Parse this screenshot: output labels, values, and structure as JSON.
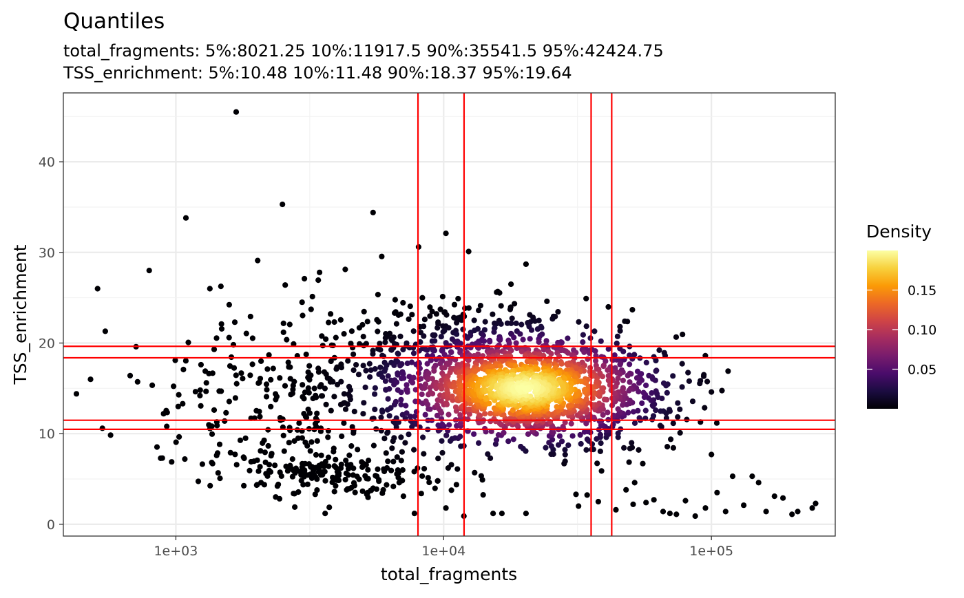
{
  "chart_data": {
    "type": "scatter",
    "title": "Quantiles",
    "subtitle_lines": [
      "total_fragments: 5%:8021.25 10%:11917.5 90%:35541.5 95%:42424.75",
      "TSS_enrichment: 5%:10.48 10%:11.48 90%:18.37 95%:19.64"
    ],
    "xlabel": "total_fragments",
    "ylabel": "TSS_enrichment",
    "x_scale": "log10",
    "xlim": [
      380,
      290000
    ],
    "ylim": [
      -1.3,
      47.6
    ],
    "x_ticks": [
      1000,
      10000,
      100000
    ],
    "x_tick_labels": [
      "1e+03",
      "1e+04",
      "1e+05"
    ],
    "y_ticks": [
      0,
      10,
      20,
      30,
      40
    ],
    "y_tick_labels": [
      "0",
      "10",
      "20",
      "30",
      "40"
    ],
    "grid": true,
    "quantile_lines": {
      "color": "#ff0000",
      "x": [
        8021.25,
        11917.5,
        35541.5,
        42424.75
      ],
      "y": [
        10.48,
        11.48,
        18.37,
        19.64
      ]
    },
    "legend": {
      "title": "Density",
      "placement": "right",
      "ticks": [
        0.05,
        0.1,
        0.15
      ],
      "tick_labels": [
        "0.05",
        "0.10",
        "0.15"
      ],
      "range": [
        0.0,
        0.2
      ],
      "colormap": [
        "#000004",
        "#1b0c41",
        "#4a0c6b",
        "#781c6d",
        "#a52c60",
        "#cf4446",
        "#ed6925",
        "#fb9b06",
        "#f7d13d",
        "#fcffa4"
      ]
    },
    "outlier_points": [
      {
        "x": 480,
        "y": 16.0
      },
      {
        "x": 510,
        "y": 26.0
      },
      {
        "x": 545,
        "y": 21.3
      },
      {
        "x": 675,
        "y": 16.4
      },
      {
        "x": 710,
        "y": 19.6
      },
      {
        "x": 795,
        "y": 28.0
      },
      {
        "x": 890,
        "y": 7.3
      },
      {
        "x": 900,
        "y": 12.2
      },
      {
        "x": 925,
        "y": 10.8
      },
      {
        "x": 1020,
        "y": 13.0
      },
      {
        "x": 1060,
        "y": 13.3
      },
      {
        "x": 1080,
        "y": 7.2
      },
      {
        "x": 1090,
        "y": 33.8
      },
      {
        "x": 1230,
        "y": 14.2
      },
      {
        "x": 1300,
        "y": 15.6
      },
      {
        "x": 1340,
        "y": 26.0
      },
      {
        "x": 1390,
        "y": 19.3
      },
      {
        "x": 1390,
        "y": 12.6
      },
      {
        "x": 1480,
        "y": 22.1
      },
      {
        "x": 1540,
        "y": 12.3
      },
      {
        "x": 1580,
        "y": 20.6
      },
      {
        "x": 1600,
        "y": 7.9
      },
      {
        "x": 1660,
        "y": 22.3
      },
      {
        "x": 1680,
        "y": 45.5
      },
      {
        "x": 1790,
        "y": 7.4
      },
      {
        "x": 1910,
        "y": 6.9
      },
      {
        "x": 2020,
        "y": 29.1
      },
      {
        "x": 2080,
        "y": 4.6
      },
      {
        "x": 2280,
        "y": 7.8
      },
      {
        "x": 2500,
        "y": 35.3
      },
      {
        "x": 2560,
        "y": 26.4
      },
      {
        "x": 2780,
        "y": 1.9
      },
      {
        "x": 2960,
        "y": 24.5
      },
      {
        "x": 3020,
        "y": 27.1
      },
      {
        "x": 3440,
        "y": 27.8
      },
      {
        "x": 3610,
        "y": 1.2
      },
      {
        "x": 5450,
        "y": 34.4
      },
      {
        "x": 7780,
        "y": 1.2
      },
      {
        "x": 8060,
        "y": 30.6
      },
      {
        "x": 10200,
        "y": 32.1
      },
      {
        "x": 10200,
        "y": 1.8
      },
      {
        "x": 11900,
        "y": 0.9
      },
      {
        "x": 12400,
        "y": 30.1
      },
      {
        "x": 15300,
        "y": 1.2
      },
      {
        "x": 16500,
        "y": 1.2
      },
      {
        "x": 20300,
        "y": 28.7
      },
      {
        "x": 20300,
        "y": 1.2
      },
      {
        "x": 24300,
        "y": 24.6
      },
      {
        "x": 31200,
        "y": 3.3
      },
      {
        "x": 31900,
        "y": 2.0
      },
      {
        "x": 37800,
        "y": 2.5
      },
      {
        "x": 44000,
        "y": 1.6
      },
      {
        "x": 48000,
        "y": 3.8
      },
      {
        "x": 51000,
        "y": 2.2
      },
      {
        "x": 57000,
        "y": 2.4
      },
      {
        "x": 61000,
        "y": 2.7
      },
      {
        "x": 66000,
        "y": 1.4
      },
      {
        "x": 70000,
        "y": 1.2
      },
      {
        "x": 74000,
        "y": 1.1
      },
      {
        "x": 80000,
        "y": 2.6
      },
      {
        "x": 87000,
        "y": 0.9
      },
      {
        "x": 95000,
        "y": 1.8
      },
      {
        "x": 100000,
        "y": 7.7
      },
      {
        "x": 100000,
        "y": 14.6
      },
      {
        "x": 105000,
        "y": 3.5
      },
      {
        "x": 113000,
        "y": 1.4
      },
      {
        "x": 120000,
        "y": 5.3
      },
      {
        "x": 132000,
        "y": 2.1
      },
      {
        "x": 142000,
        "y": 5.3
      },
      {
        "x": 150000,
        "y": 4.6
      },
      {
        "x": 160000,
        "y": 1.4
      },
      {
        "x": 172000,
        "y": 3.1
      },
      {
        "x": 185000,
        "y": 2.9
      },
      {
        "x": 200000,
        "y": 1.1
      },
      {
        "x": 210000,
        "y": 1.4
      },
      {
        "x": 238000,
        "y": 1.8
      },
      {
        "x": 245000,
        "y": 2.3
      }
    ],
    "point_clouds": [
      {
        "center_x": 20000,
        "center_y": 15.0,
        "log_spread": 0.23,
        "y_spread": 2.8,
        "count": 1300
      },
      {
        "center_x": 5200,
        "center_y": 14.5,
        "log_spread": 0.35,
        "y_spread": 3.6,
        "count": 260
      },
      {
        "center_x": 3800,
        "center_y": 5.6,
        "log_spread": 0.24,
        "y_spread": 1.3,
        "count": 190
      },
      {
        "center_x": 12000,
        "center_y": 20.5,
        "log_spread": 0.26,
        "y_spread": 2.6,
        "count": 220
      },
      {
        "center_x": 40000,
        "center_y": 12.5,
        "log_spread": 0.22,
        "y_spread": 3.0,
        "count": 160
      },
      {
        "center_x": 2800,
        "center_y": 13.0,
        "log_spread": 0.27,
        "y_spread": 4.5,
        "count": 90
      }
    ]
  }
}
